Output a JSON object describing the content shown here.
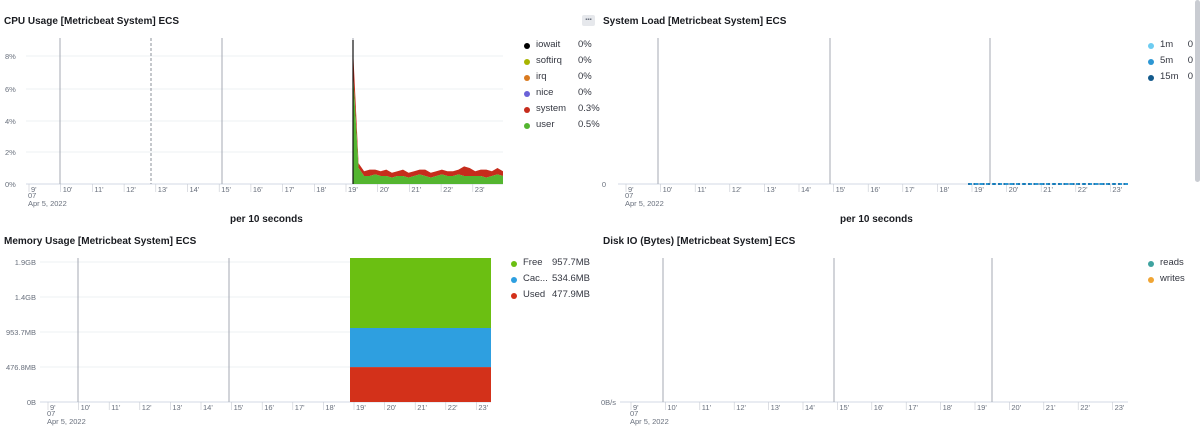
{
  "cpu": {
    "title": "CPU Usage [Metricbeat System] ECS",
    "y_ticks": [
      "8%",
      "6%",
      "4%",
      "2%",
      "0%"
    ],
    "x_ticks": [
      "9'",
      "10'",
      "11'",
      "12'",
      "13'",
      "14'",
      "15'",
      "16'",
      "17'",
      "18'",
      "19'",
      "20'",
      "21'",
      "22'",
      "23'"
    ],
    "date_top": "07",
    "date_bottom": "Apr 5, 2022",
    "axis_title": "per 10 seconds",
    "legend": [
      {
        "label": "iowait",
        "value": "0%",
        "color": "#000000"
      },
      {
        "label": "softirq",
        "value": "0%",
        "color": "#a8b400"
      },
      {
        "label": "irq",
        "value": "0%",
        "color": "#d97a1f"
      },
      {
        "label": "nice",
        "value": "0%",
        "color": "#6a62d8"
      },
      {
        "label": "system",
        "value": "0.3%",
        "color": "#c62c1c"
      },
      {
        "label": "user",
        "value": "0.5%",
        "color": "#54b530"
      }
    ]
  },
  "load": {
    "title": "System Load [Metricbeat System] ECS",
    "menu_icon": "ellipsis-icon",
    "y_ticks": [
      "0"
    ],
    "x_ticks": [
      "9'",
      "10'",
      "11'",
      "12'",
      "13'",
      "14'",
      "15'",
      "16'",
      "17'",
      "18'",
      "19'",
      "20'",
      "21'",
      "22'",
      "23'"
    ],
    "date_top": "07",
    "date_bottom": "Apr 5, 2022",
    "axis_title": "per 10 seconds",
    "legend": [
      {
        "label": "1m",
        "value": "0",
        "color": "#6dccf1"
      },
      {
        "label": "5m",
        "value": "0",
        "color": "#2d97d4"
      },
      {
        "label": "15m",
        "value": "0",
        "color": "#135a8c"
      }
    ]
  },
  "memory": {
    "title": "Memory Usage [Metricbeat System] ECS",
    "y_ticks": [
      "1.9GB",
      "1.4GB",
      "953.7MB",
      "476.8MB",
      "0B"
    ],
    "x_ticks": [
      "9'",
      "10'",
      "11'",
      "12'",
      "13'",
      "14'",
      "15'",
      "16'",
      "17'",
      "18'",
      "19'",
      "20'",
      "21'",
      "22'",
      "23'"
    ],
    "date_top": "07",
    "date_bottom": "Apr 5, 2022",
    "legend": [
      {
        "label": "Free",
        "value": "957.7MB",
        "color": "#6bbf12"
      },
      {
        "label": "Cac...",
        "value": "534.6MB",
        "color": "#2e9fe0"
      },
      {
        "label": "Used",
        "value": "477.9MB",
        "color": "#d3311a"
      }
    ]
  },
  "disk": {
    "title": "Disk IO (Bytes) [Metricbeat System] ECS",
    "y_ticks": [
      "0B/s"
    ],
    "x_ticks": [
      "9'",
      "10'",
      "11'",
      "12'",
      "13'",
      "14'",
      "15'",
      "16'",
      "17'",
      "18'",
      "19'",
      "20'",
      "21'",
      "22'",
      "23'"
    ],
    "date_top": "07",
    "date_bottom": "Apr 5, 2022",
    "legend": [
      {
        "label": "reads",
        "value": "",
        "color": "#3fa3a0"
      },
      {
        "label": "writes",
        "value": "",
        "color": "#f0a534"
      }
    ]
  }
}
